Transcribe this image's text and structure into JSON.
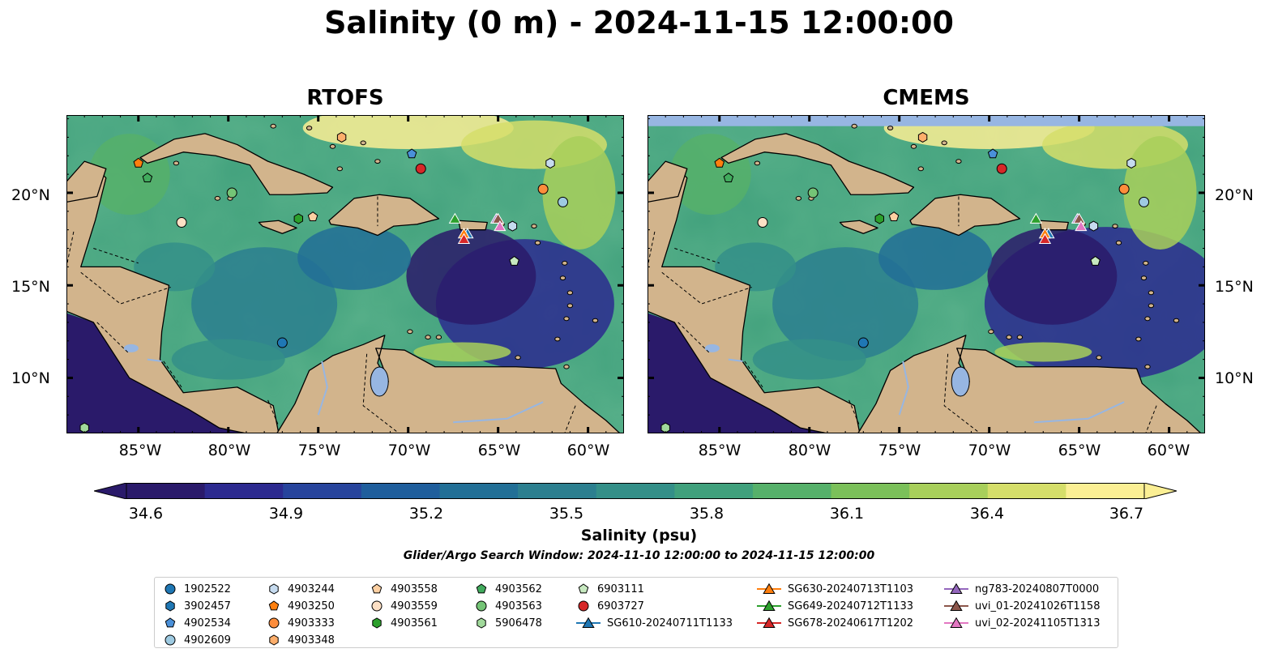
{
  "title": "Salinity (0 m) - 2024-11-15 12:00:00",
  "panels": [
    {
      "title": "RTOFS"
    },
    {
      "title": "CMEMS"
    }
  ],
  "axes": {
    "lat_ticks": [
      "20°N",
      "15°N",
      "10°N"
    ],
    "lon_ticks": [
      "85°W",
      "80°W",
      "75°W",
      "70°W",
      "65°W",
      "60°W"
    ],
    "lat_range": [
      7,
      24.2
    ],
    "lon_range": [
      -89,
      -58
    ]
  },
  "colorbar": {
    "label": "Salinity (psu)",
    "ticks": [
      "34.6",
      "34.9",
      "35.2",
      "35.5",
      "35.8",
      "36.1",
      "36.4",
      "36.7"
    ],
    "range": [
      34.6,
      36.7
    ],
    "colors": [
      "#2a1a6a",
      "#2c2a8f",
      "#27449c",
      "#1f5e9c",
      "#226f96",
      "#2c7f8f",
      "#348f88",
      "#40a07c",
      "#56b06a",
      "#7bc05a",
      "#a8cf5b",
      "#d5de6a",
      "#fbef94"
    ]
  },
  "search_window": "Glider/Argo Search Window: 2024-11-10 12:00:00 to 2024-11-15 12:00:00",
  "legend": [
    {
      "label": "1902522",
      "marker": "circle",
      "color": "#1f77b4"
    },
    {
      "label": "3902457",
      "marker": "hexagon",
      "color": "#1f77b4"
    },
    {
      "label": "4902534",
      "marker": "pentagon",
      "color": "#4a90d9"
    },
    {
      "label": "4902609",
      "marker": "circle",
      "color": "#9ecae1"
    },
    {
      "label": "4903244",
      "marker": "hexagon",
      "color": "#c6dbef"
    },
    {
      "label": "4903250",
      "marker": "pentagon",
      "color": "#ff7f0e"
    },
    {
      "label": "4903333",
      "marker": "circle",
      "color": "#fd8d3c"
    },
    {
      "label": "4903348",
      "marker": "hexagon",
      "color": "#fdae6b"
    },
    {
      "label": "4903558",
      "marker": "pentagon",
      "color": "#fdd0a2"
    },
    {
      "label": "4903559",
      "marker": "circle",
      "color": "#fde0c5"
    },
    {
      "label": "4903561",
      "marker": "hexagon",
      "color": "#2ca02c"
    },
    {
      "label": "4903562",
      "marker": "pentagon",
      "color": "#41ab5d"
    },
    {
      "label": "4903563",
      "marker": "circle",
      "color": "#74c476"
    },
    {
      "label": "5906478",
      "marker": "hexagon",
      "color": "#a1d99b"
    },
    {
      "label": "6903111",
      "marker": "pentagon",
      "color": "#c7e9c0"
    },
    {
      "label": "6903727",
      "marker": "circle",
      "color": "#d62728"
    },
    {
      "label": "SG610-20240711T1133",
      "marker": "triangle",
      "color": "#1f77b4"
    },
    {
      "label": "SG630-20240713T1103",
      "marker": "triangle",
      "color": "#ff7f0e"
    },
    {
      "label": "SG649-20240712T1133",
      "marker": "triangle",
      "color": "#2ca02c"
    },
    {
      "label": "SG678-20240617T1202",
      "marker": "triangle",
      "color": "#d62728"
    },
    {
      "label": "ng783-20240807T0000",
      "marker": "triangle",
      "color": "#9467bd"
    },
    {
      "label": "uvi_01-20241026T1158",
      "marker": "triangle",
      "color": "#8c564b"
    },
    {
      "label": "uvi_02-20241105T1313",
      "marker": "triangle",
      "color": "#e377c2"
    }
  ],
  "platforms": [
    {
      "id": "1902522",
      "lon": -77.0,
      "lat": 11.9
    },
    {
      "id": "4902534",
      "lon": -69.8,
      "lat": 22.1
    },
    {
      "id": "4902609",
      "lon": -61.4,
      "lat": 19.5
    },
    {
      "id": "4903244",
      "lon": -62.1,
      "lat": 21.6
    },
    {
      "id": "4903250",
      "lon": -85.0,
      "lat": 21.6
    },
    {
      "id": "4903333",
      "lon": -62.5,
      "lat": 20.2
    },
    {
      "id": "4903348",
      "lon": -73.7,
      "lat": 23.0
    },
    {
      "id": "4903558",
      "lon": -75.3,
      "lat": 18.7
    },
    {
      "id": "4903559",
      "lon": -82.6,
      "lat": 18.4
    },
    {
      "id": "4903561",
      "lon": -76.1,
      "lat": 18.6
    },
    {
      "id": "4903562",
      "lon": -84.5,
      "lat": 20.8
    },
    {
      "id": "4903563",
      "lon": -79.8,
      "lat": 20.0
    },
    {
      "id": "5906478",
      "lon": -88.0,
      "lat": 7.3
    },
    {
      "id": "6903111",
      "lon": -64.1,
      "lat": 16.3
    },
    {
      "id": "6903727",
      "lon": -69.3,
      "lat": 21.3
    },
    {
      "id": "4903244",
      "lon": -64.2,
      "lat": 18.2
    },
    {
      "id": "SG610-20240711T1133",
      "lon": -66.7,
      "lat": 17.8
    },
    {
      "id": "SG630-20240713T1103",
      "lon": -66.9,
      "lat": 17.8
    },
    {
      "id": "SG649-20240712T1133",
      "lon": -67.4,
      "lat": 18.6
    },
    {
      "id": "SG678-20240617T1202",
      "lon": -66.9,
      "lat": 17.5
    },
    {
      "id": "ng783-20240807T0000",
      "lon": -65.1,
      "lat": 18.6
    },
    {
      "id": "uvi_01-20241026T1158",
      "lon": -65.0,
      "lat": 18.6
    },
    {
      "id": "uvi_02-20241105T1313",
      "lon": -64.9,
      "lat": 18.2
    }
  ]
}
